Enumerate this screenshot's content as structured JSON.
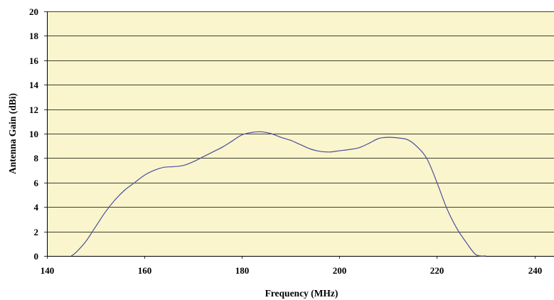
{
  "chart_data": {
    "type": "line",
    "title": "",
    "xlabel": "Frequency (MHz)",
    "ylabel": "Antenna Gain (dBi)",
    "xlim": [
      140,
      244
    ],
    "ylim": [
      0,
      20
    ],
    "x_ticks": [
      140,
      160,
      180,
      200,
      220,
      240
    ],
    "y_ticks": [
      0,
      2,
      4,
      6,
      8,
      10,
      12,
      14,
      16,
      18,
      20
    ],
    "grid": "horizontal",
    "legend": "none",
    "colors": {
      "plot_background": "#FAF5CC",
      "line": "#4B4F9E",
      "gridline": "#000000"
    },
    "series": [
      {
        "x": [
          145,
          146,
          148,
          150,
          152,
          154,
          156,
          158,
          160,
          162,
          164,
          166,
          168,
          170,
          172,
          174,
          176,
          178,
          180,
          182,
          184,
          186,
          188,
          190,
          192,
          194,
          196,
          198,
          200,
          202,
          204,
          206,
          208,
          210,
          212,
          214,
          216,
          218,
          220,
          222,
          224,
          226,
          228,
          230
        ],
        "y": [
          0,
          0.3,
          1.2,
          2.4,
          3.6,
          4.6,
          5.4,
          6.0,
          6.6,
          7.0,
          7.25,
          7.3,
          7.4,
          7.7,
          8.1,
          8.5,
          8.9,
          9.4,
          9.9,
          10.1,
          10.15,
          10.0,
          9.7,
          9.45,
          9.1,
          8.75,
          8.55,
          8.5,
          8.6,
          8.7,
          8.85,
          9.2,
          9.6,
          9.7,
          9.65,
          9.5,
          8.9,
          7.9,
          6.0,
          3.9,
          2.3,
          1.1,
          0.1,
          0
        ]
      }
    ]
  }
}
